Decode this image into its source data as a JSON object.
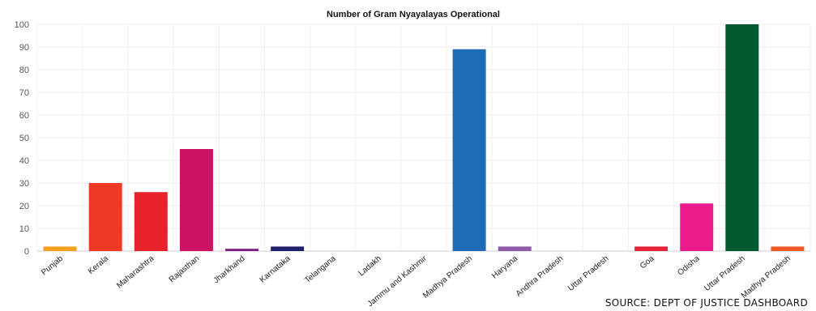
{
  "chart_data": {
    "type": "bar",
    "title": "Number of Gram Nyayalayas Operational",
    "xlabel": "",
    "ylabel": "",
    "ylim": [
      0,
      100
    ],
    "yticks": [
      0,
      10,
      20,
      30,
      40,
      50,
      60,
      70,
      80,
      90,
      100
    ],
    "grid": true,
    "categories": [
      "Punjab",
      "Kerala",
      "Maharashtra",
      "Rajasthan",
      "Jharkhand",
      "Karnataka",
      "Telangana",
      "Ladakh",
      "Jammu and Kashmir",
      "Madhya Pradesh",
      "Haryana",
      "Andhra Pradesh",
      "Uttar Pradesh",
      "Goa",
      "Odisha",
      "Uttar Pradesh",
      "Madhya Pradesh"
    ],
    "values": [
      2,
      30,
      26,
      45,
      1,
      2,
      0,
      0,
      0,
      89,
      2,
      0,
      0,
      2,
      21,
      100,
      2
    ],
    "colors": [
      "#f5a11c",
      "#ee3a24",
      "#e8222a",
      "#cc1264",
      "#7b1c7e",
      "#23206b",
      "#999999",
      "#999999",
      "#999999",
      "#1f6bb5",
      "#8e5ba8",
      "#999999",
      "#999999",
      "#e8223a",
      "#ec1b8c",
      "#00592e",
      "#ee5a24"
    ]
  },
  "source": "SOURCE: DEPT OF JUSTICE DASHBOARD"
}
